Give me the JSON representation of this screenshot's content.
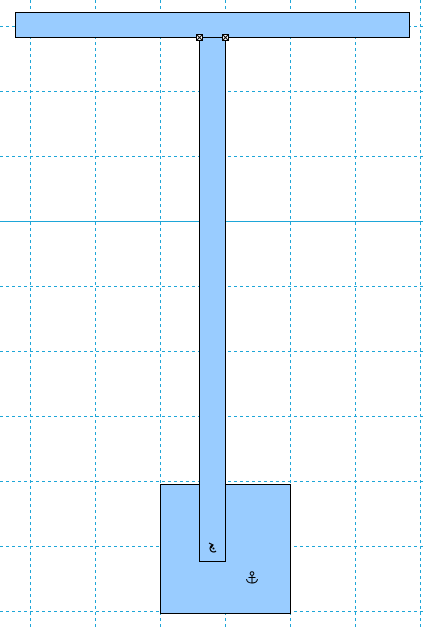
{
  "canvas": {
    "background": "#ffffff",
    "grid": true,
    "grid_color": "#1ea6d8",
    "grid_style": "dashed",
    "guide_color": "#1ea6d8"
  },
  "shapes": {
    "fill_color": "#99ccff",
    "stroke_color": "#000000",
    "top_bar": {
      "label": ""
    },
    "vertical_stem": {
      "label": ""
    },
    "bottom_square": {
      "label": ""
    }
  },
  "handles": {
    "left": {
      "icon": "connection-point-icon"
    },
    "right": {
      "icon": "connection-point-icon"
    }
  },
  "icons": {
    "rotate": {
      "name": "rotation-handle-icon",
      "glyph": "⟲"
    },
    "anchor": {
      "name": "anchor-icon",
      "glyph": "⚓"
    }
  }
}
